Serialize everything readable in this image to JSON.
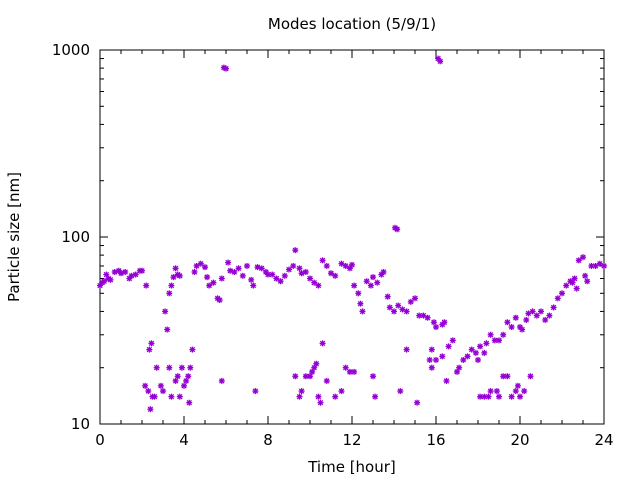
{
  "chart_data": {
    "type": "scatter",
    "title": "Modes location (5/9/1)",
    "xlabel": "Time [hour]",
    "ylabel": "Particle size [nm]",
    "xlim": [
      0,
      24
    ],
    "ylim": [
      10,
      1000
    ],
    "yscale": "log",
    "xticks": [
      0,
      4,
      8,
      12,
      16,
      20,
      24
    ],
    "xtick_labels": [
      "0",
      "4",
      "8",
      "12",
      "16",
      "20",
      "24"
    ],
    "yticks": [
      10,
      100,
      1000
    ],
    "ytick_labels": [
      "10",
      "100",
      "1000"
    ],
    "marker_color": "#9400d3",
    "legend": "none",
    "grid": false,
    "points": [
      [
        0.0,
        55
      ],
      [
        0.1,
        57
      ],
      [
        0.2,
        58
      ],
      [
        0.3,
        63
      ],
      [
        0.4,
        60
      ],
      [
        0.5,
        59
      ],
      [
        0.7,
        65
      ],
      [
        0.9,
        66
      ],
      [
        1.0,
        64
      ],
      [
        1.2,
        65
      ],
      [
        1.4,
        60
      ],
      [
        1.5,
        62
      ],
      [
        1.7,
        63
      ],
      [
        1.9,
        66
      ],
      [
        2.0,
        66
      ],
      [
        2.2,
        55
      ],
      [
        2.15,
        16
      ],
      [
        2.3,
        15
      ],
      [
        2.4,
        12
      ],
      [
        2.5,
        14
      ],
      [
        2.35,
        25
      ],
      [
        2.45,
        27
      ],
      [
        2.6,
        14
      ],
      [
        2.7,
        20
      ],
      [
        2.9,
        16
      ],
      [
        3.0,
        15
      ],
      [
        3.1,
        40
      ],
      [
        3.2,
        32
      ],
      [
        3.3,
        50
      ],
      [
        3.4,
        55
      ],
      [
        3.5,
        61
      ],
      [
        3.6,
        68
      ],
      [
        3.7,
        63
      ],
      [
        3.8,
        62
      ],
      [
        3.3,
        20
      ],
      [
        3.4,
        14
      ],
      [
        3.6,
        17
      ],
      [
        3.7,
        18
      ],
      [
        3.8,
        14
      ],
      [
        3.9,
        20
      ],
      [
        4.0,
        16
      ],
      [
        4.1,
        17
      ],
      [
        4.2,
        18
      ],
      [
        4.3,
        20
      ],
      [
        4.4,
        25
      ],
      [
        4.25,
        13
      ],
      [
        4.5,
        65
      ],
      [
        4.6,
        70
      ],
      [
        4.8,
        72
      ],
      [
        5.0,
        69
      ],
      [
        5.1,
        61
      ],
      [
        5.2,
        55
      ],
      [
        5.4,
        57
      ],
      [
        5.6,
        47
      ],
      [
        5.7,
        46
      ],
      [
        5.8,
        60
      ],
      [
        5.8,
        17
      ],
      [
        5.9,
        805
      ],
      [
        6.0,
        795
      ],
      [
        6.1,
        73
      ],
      [
        6.2,
        66
      ],
      [
        6.4,
        65
      ],
      [
        6.6,
        68
      ],
      [
        6.8,
        62
      ],
      [
        7.0,
        70
      ],
      [
        7.2,
        59
      ],
      [
        7.3,
        55
      ],
      [
        7.5,
        69
      ],
      [
        7.7,
        68
      ],
      [
        7.9,
        65
      ],
      [
        8.0,
        63
      ],
      [
        8.2,
        63
      ],
      [
        8.4,
        60
      ],
      [
        8.6,
        58
      ],
      [
        8.8,
        62
      ],
      [
        7.4,
        15
      ],
      [
        9.0,
        67
      ],
      [
        9.2,
        70
      ],
      [
        9.3,
        85
      ],
      [
        9.5,
        68
      ],
      [
        9.6,
        64
      ],
      [
        9.8,
        65
      ],
      [
        10.0,
        60
      ],
      [
        10.2,
        57
      ],
      [
        10.4,
        55
      ],
      [
        10.6,
        75
      ],
      [
        10.8,
        70
      ],
      [
        11.0,
        64
      ],
      [
        11.2,
        62
      ],
      [
        11.5,
        72
      ],
      [
        11.7,
        70
      ],
      [
        11.9,
        68
      ],
      [
        12.0,
        71
      ],
      [
        9.3,
        18
      ],
      [
        9.5,
        14
      ],
      [
        9.6,
        15
      ],
      [
        9.8,
        18
      ],
      [
        10.0,
        18
      ],
      [
        10.1,
        19
      ],
      [
        10.2,
        20
      ],
      [
        10.3,
        21
      ],
      [
        10.4,
        14
      ],
      [
        10.5,
        13
      ],
      [
        10.6,
        27
      ],
      [
        10.8,
        17
      ],
      [
        11.2,
        14
      ],
      [
        11.5,
        15
      ],
      [
        11.7,
        20
      ],
      [
        11.9,
        19
      ],
      [
        12.1,
        19
      ],
      [
        12.1,
        55
      ],
      [
        12.3,
        50
      ],
      [
        12.4,
        44
      ],
      [
        12.5,
        40
      ],
      [
        12.7,
        58
      ],
      [
        12.9,
        55
      ],
      [
        13.0,
        61
      ],
      [
        13.2,
        57
      ],
      [
        13.4,
        63
      ],
      [
        13.5,
        65
      ],
      [
        13.0,
        18
      ],
      [
        13.1,
        14
      ],
      [
        13.7,
        48
      ],
      [
        13.8,
        42
      ],
      [
        14.0,
        40
      ],
      [
        14.05,
        112
      ],
      [
        14.15,
        110
      ],
      [
        14.2,
        43
      ],
      [
        14.4,
        41
      ],
      [
        14.6,
        40
      ],
      [
        14.8,
        45
      ],
      [
        15.0,
        47
      ],
      [
        14.3,
        15
      ],
      [
        14.6,
        25
      ],
      [
        15.1,
        13
      ],
      [
        15.2,
        38
      ],
      [
        15.4,
        38
      ],
      [
        15.6,
        37
      ],
      [
        15.7,
        22
      ],
      [
        15.8,
        20
      ],
      [
        15.9,
        35
      ],
      [
        16.0,
        33
      ],
      [
        16.1,
        900
      ],
      [
        16.2,
        870
      ],
      [
        16.3,
        34
      ],
      [
        16.4,
        35
      ],
      [
        15.8,
        25
      ],
      [
        16.0,
        22
      ],
      [
        16.3,
        23
      ],
      [
        16.5,
        17
      ],
      [
        16.6,
        26
      ],
      [
        16.8,
        28
      ],
      [
        17.0,
        19
      ],
      [
        17.1,
        20
      ],
      [
        17.3,
        22
      ],
      [
        17.5,
        23
      ],
      [
        17.7,
        25
      ],
      [
        17.9,
        24
      ],
      [
        18.0,
        22
      ],
      [
        18.1,
        26
      ],
      [
        18.3,
        24
      ],
      [
        18.4,
        27
      ],
      [
        18.6,
        30
      ],
      [
        18.8,
        28
      ],
      [
        18.1,
        14
      ],
      [
        18.3,
        14
      ],
      [
        18.5,
        14
      ],
      [
        18.6,
        15
      ],
      [
        18.9,
        15
      ],
      [
        19.0,
        14
      ],
      [
        19.2,
        18
      ],
      [
        19.4,
        18
      ],
      [
        19.6,
        14
      ],
      [
        19.8,
        15
      ],
      [
        19.9,
        16
      ],
      [
        20.0,
        14
      ],
      [
        20.2,
        15
      ],
      [
        19.0,
        28
      ],
      [
        19.2,
        30
      ],
      [
        19.4,
        35
      ],
      [
        19.6,
        33
      ],
      [
        19.8,
        37
      ],
      [
        20.0,
        33
      ],
      [
        20.1,
        32
      ],
      [
        20.3,
        36
      ],
      [
        20.4,
        39
      ],
      [
        20.6,
        40
      ],
      [
        20.5,
        18
      ],
      [
        20.8,
        38
      ],
      [
        21.0,
        40
      ],
      [
        21.2,
        36
      ],
      [
        21.4,
        38
      ],
      [
        21.6,
        42
      ],
      [
        21.8,
        47
      ],
      [
        22.0,
        50
      ],
      [
        22.2,
        55
      ],
      [
        22.4,
        58
      ],
      [
        22.5,
        57
      ],
      [
        22.6,
        60
      ],
      [
        22.7,
        53
      ],
      [
        22.8,
        75
      ],
      [
        23.0,
        78
      ],
      [
        23.1,
        62
      ],
      [
        23.2,
        58
      ],
      [
        23.4,
        70
      ],
      [
        23.6,
        70
      ],
      [
        23.8,
        72
      ],
      [
        24.0,
        70
      ]
    ]
  }
}
